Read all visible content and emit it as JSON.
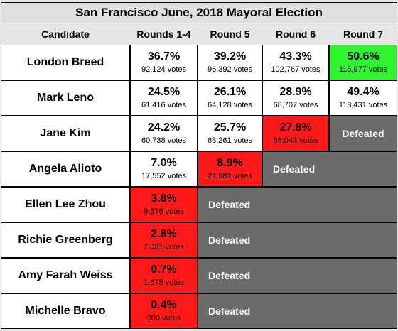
{
  "title": "San Francisco June, 2018 Mayoral Election",
  "headers": [
    "Candidate",
    "Rounds 1-4",
    "Round 5",
    "Round 6",
    "Round 7"
  ],
  "defeated_label": "Defeated",
  "candidates": [
    {
      "name": "London Breed",
      "results": [
        {
          "pct": "36.7%",
          "votes": "92,124 votes",
          "status": "normal"
        },
        {
          "pct": "39.2%",
          "votes": "96,392 votes",
          "status": "normal"
        },
        {
          "pct": "43.3%",
          "votes": "102,767 votes",
          "status": "normal"
        },
        {
          "pct": "50.6%",
          "votes": "115,977 votes",
          "status": "winner"
        }
      ]
    },
    {
      "name": "Mark Leno",
      "results": [
        {
          "pct": "24.5%",
          "votes": "61,416 votes",
          "status": "normal"
        },
        {
          "pct": "26.1%",
          "votes": "64,128 votes",
          "status": "normal"
        },
        {
          "pct": "28.9%",
          "votes": "68,707 votes",
          "status": "normal"
        },
        {
          "pct": "49.4%",
          "votes": "113,431 votes",
          "status": "normal"
        }
      ]
    },
    {
      "name": "Jane Kim",
      "results": [
        {
          "pct": "24.2%",
          "votes": "60,738 votes",
          "status": "normal"
        },
        {
          "pct": "25.7%",
          "votes": "63,261 votes",
          "status": "normal"
        },
        {
          "pct": "27.8%",
          "votes": "66,043 votes",
          "status": "eliminated"
        }
      ]
    },
    {
      "name": "Angela Alioto",
      "results": [
        {
          "pct": "7.0%",
          "votes": "17,552 votes",
          "status": "normal"
        },
        {
          "pct": "8.9%",
          "votes": "21,981 votes",
          "status": "eliminated"
        }
      ]
    },
    {
      "name": "Ellen Lee Zhou",
      "results": [
        {
          "pct": "3.8%",
          "votes": "9,576 votes",
          "status": "eliminated"
        }
      ]
    },
    {
      "name": "Richie Greenberg",
      "results": [
        {
          "pct": "2.8%",
          "votes": "7,051 votes",
          "status": "eliminated"
        }
      ]
    },
    {
      "name": "Amy Farah Weiss",
      "results": [
        {
          "pct": "0.7%",
          "votes": "1,675 votes",
          "status": "eliminated"
        }
      ]
    },
    {
      "name": "Michelle Bravo",
      "results": [
        {
          "pct": "0.4%",
          "votes": "900 votes",
          "status": "eliminated"
        }
      ]
    }
  ],
  "colors": {
    "eliminated": "#ff1a1a",
    "winner": "#2ef52e",
    "defeated_bg": "#6b6b6b",
    "header_bg": "#e6e6e6"
  }
}
